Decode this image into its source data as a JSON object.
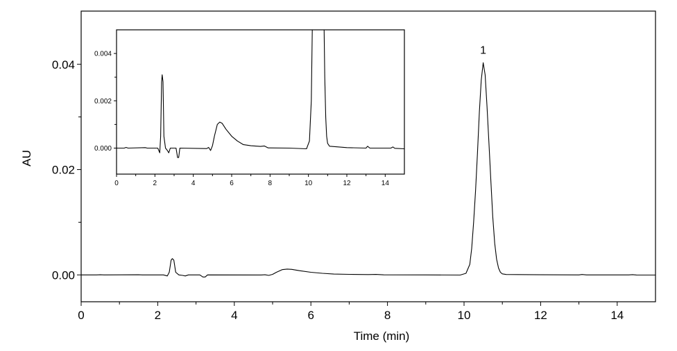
{
  "chart_data": [
    {
      "type": "line",
      "role": "main",
      "xlabel": "Time (min)",
      "ylabel": "AU",
      "xlim": [
        0,
        15
      ],
      "ylim": [
        -0.0051,
        0.0501
      ],
      "xticks": [
        "0",
        "2",
        "4",
        "6",
        "8",
        "10",
        "12",
        "14"
      ],
      "xtick_values": [
        0,
        2,
        4,
        6,
        8,
        10,
        12,
        14
      ],
      "xminor": [
        1,
        3,
        5,
        7,
        9,
        11,
        13
      ],
      "yticks": [
        "0.00",
        "0.02",
        "0.04"
      ],
      "ytick_values": [
        0,
        0.02,
        0.04
      ],
      "yminor": [
        0.01,
        0.03
      ],
      "grid": false,
      "annotations": [
        {
          "text": "1",
          "x": 10.5,
          "y": 0.0403
        }
      ],
      "line_color": "#000000"
    },
    {
      "type": "line",
      "role": "inset",
      "xlim": [
        0,
        15
      ],
      "ylim": [
        -0.0011,
        0.005
      ],
      "xticks": [
        "0",
        "2",
        "4",
        "6",
        "8",
        "10",
        "12",
        "14"
      ],
      "xtick_values": [
        0,
        2,
        4,
        6,
        8,
        10,
        12,
        14
      ],
      "xminor": [
        1,
        3,
        5,
        7,
        9,
        11,
        13
      ],
      "yticks": [
        "0.000",
        "0.002",
        "0.004"
      ],
      "ytick_values": [
        0,
        0.002,
        0.004
      ],
      "yminor": [
        0.001,
        0.003
      ],
      "grid": false,
      "line_color": "#000000"
    }
  ],
  "series": {
    "x": [
      0,
      0.4,
      0.5,
      0.6,
      1.5,
      1.6,
      2.15,
      2.25,
      2.3,
      2.35,
      2.38,
      2.42,
      2.47,
      2.55,
      2.65,
      2.72,
      2.8,
      3.1,
      3.18,
      3.24,
      3.3,
      4.7,
      4.8,
      4.9,
      5.0,
      5.1,
      5.25,
      5.38,
      5.5,
      5.7,
      6.0,
      6.3,
      6.6,
      7.0,
      7.5,
      7.7,
      7.9,
      9.0,
      9.9,
      10.05,
      10.15,
      10.2,
      10.25,
      10.3,
      10.35,
      10.4,
      10.45,
      10.5,
      10.55,
      10.6,
      10.65,
      10.7,
      10.75,
      10.8,
      10.85,
      10.9,
      10.95,
      11.0,
      11.1,
      12.0,
      13.0,
      13.08,
      13.2,
      14.3,
      14.4,
      14.5,
      15
    ],
    "y": [
      0,
      0,
      3e-05,
      0,
      2e-05,
      0,
      0,
      -0.0002,
      0.0005,
      0.0028,
      0.0031,
      0.0028,
      0.0005,
      0,
      -0.0001,
      -0.0002,
      0,
      0,
      -0.0004,
      -0.0004,
      0,
      -2e-05,
      3e-05,
      -0.0001,
      0.0001,
      0.0005,
      0.001,
      0.0011,
      0.00105,
      0.0008,
      0.0005,
      0.0003,
      0.00015,
      0.0001,
      7e-05,
      9e-05,
      1e-05,
      0,
      -3e-05,
      0.0003,
      0.002,
      0.005,
      0.01,
      0.016,
      0.023,
      0.031,
      0.037,
      0.0403,
      0.038,
      0.032,
      0.025,
      0.018,
      0.011,
      0.006,
      0.003,
      0.0013,
      0.0005,
      0.0002,
      8e-05,
      2e-05,
      0,
      8e-05,
      0,
      0,
      5e-05,
      -1e-05,
      -3e-05
    ]
  }
}
